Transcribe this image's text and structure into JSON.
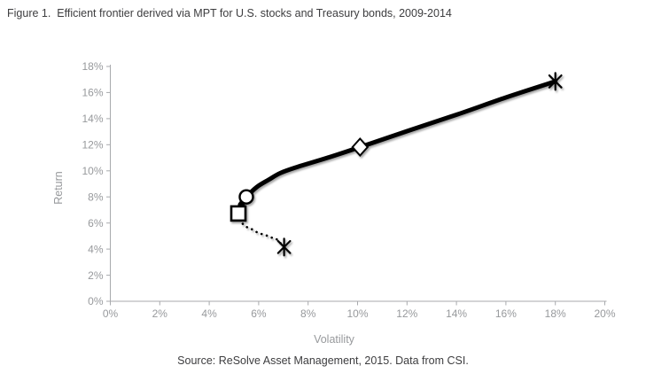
{
  "chart_data": {
    "type": "line",
    "title": "Figure 1.  Efficient frontier derived via MPT for U.S. stocks and Treasury bonds, 2009-2014",
    "source": "Source: ReSolve Asset Management, 2015. Data from CSI.",
    "xlabel": "Volatility",
    "ylabel": "Return",
    "xlim": [
      0,
      20
    ],
    "ylim": [
      0,
      18
    ],
    "grid": false,
    "legend": "none",
    "x_tick_values": [
      0,
      2,
      4,
      6,
      8,
      10,
      12,
      14,
      16,
      18,
      20
    ],
    "x_tick_labels": [
      "0%",
      "2%",
      "4%",
      "6%",
      "8%",
      "10%",
      "12%",
      "14%",
      "16%",
      "18%",
      "20%"
    ],
    "y_tick_values": [
      0,
      2,
      4,
      6,
      8,
      10,
      12,
      14,
      16,
      18
    ],
    "y_tick_labels": [
      "0%",
      "2%",
      "4%",
      "6%",
      "8%",
      "10%",
      "12%",
      "14%",
      "16%",
      "18%"
    ],
    "series": [
      {
        "name": "efficient-frontier",
        "style": "solid",
        "line_width": 5,
        "points": [
          [
            5.25,
            7.42
          ],
          [
            5.5,
            8.0
          ],
          [
            5.93,
            8.76
          ],
          [
            6.4,
            9.31
          ],
          [
            6.9,
            9.85
          ],
          [
            7.62,
            10.33
          ],
          [
            8.8,
            11.01
          ],
          [
            10.1,
            11.82
          ],
          [
            12.0,
            13.04
          ],
          [
            14.05,
            14.33
          ],
          [
            16.0,
            15.62
          ],
          [
            18.0,
            16.85
          ]
        ]
      },
      {
        "name": "inefficient-frontier",
        "style": "dotted",
        "line_width": 2.6,
        "points": [
          [
            5.18,
            6.7
          ],
          [
            5.35,
            5.95
          ],
          [
            5.57,
            5.64
          ],
          [
            5.75,
            5.5
          ],
          [
            5.93,
            5.3
          ],
          [
            6.11,
            5.16
          ],
          [
            6.33,
            5.03
          ],
          [
            6.51,
            4.89
          ],
          [
            6.72,
            4.76
          ],
          [
            7.0,
            4.2
          ]
        ]
      }
    ],
    "markers": [
      {
        "shape": "asterisk",
        "x": 18.0,
        "y": 16.85
      },
      {
        "shape": "diamond",
        "x": 10.1,
        "y": 11.82
      },
      {
        "shape": "circle",
        "x": 5.5,
        "y": 8.0
      },
      {
        "shape": "triangle",
        "x": 5.3,
        "y": 7.48
      },
      {
        "shape": "square",
        "x": 5.18,
        "y": 6.73
      },
      {
        "shape": "asterisk",
        "x": 7.03,
        "y": 4.16
      }
    ],
    "colors": {
      "series": "#000000",
      "marker_fill": "#ffffff",
      "axis": "#a8aaad",
      "tick_label": "#97999c",
      "title": "#3d3d3f",
      "source": "#3d3d3f",
      "background": "#ffffff"
    }
  }
}
